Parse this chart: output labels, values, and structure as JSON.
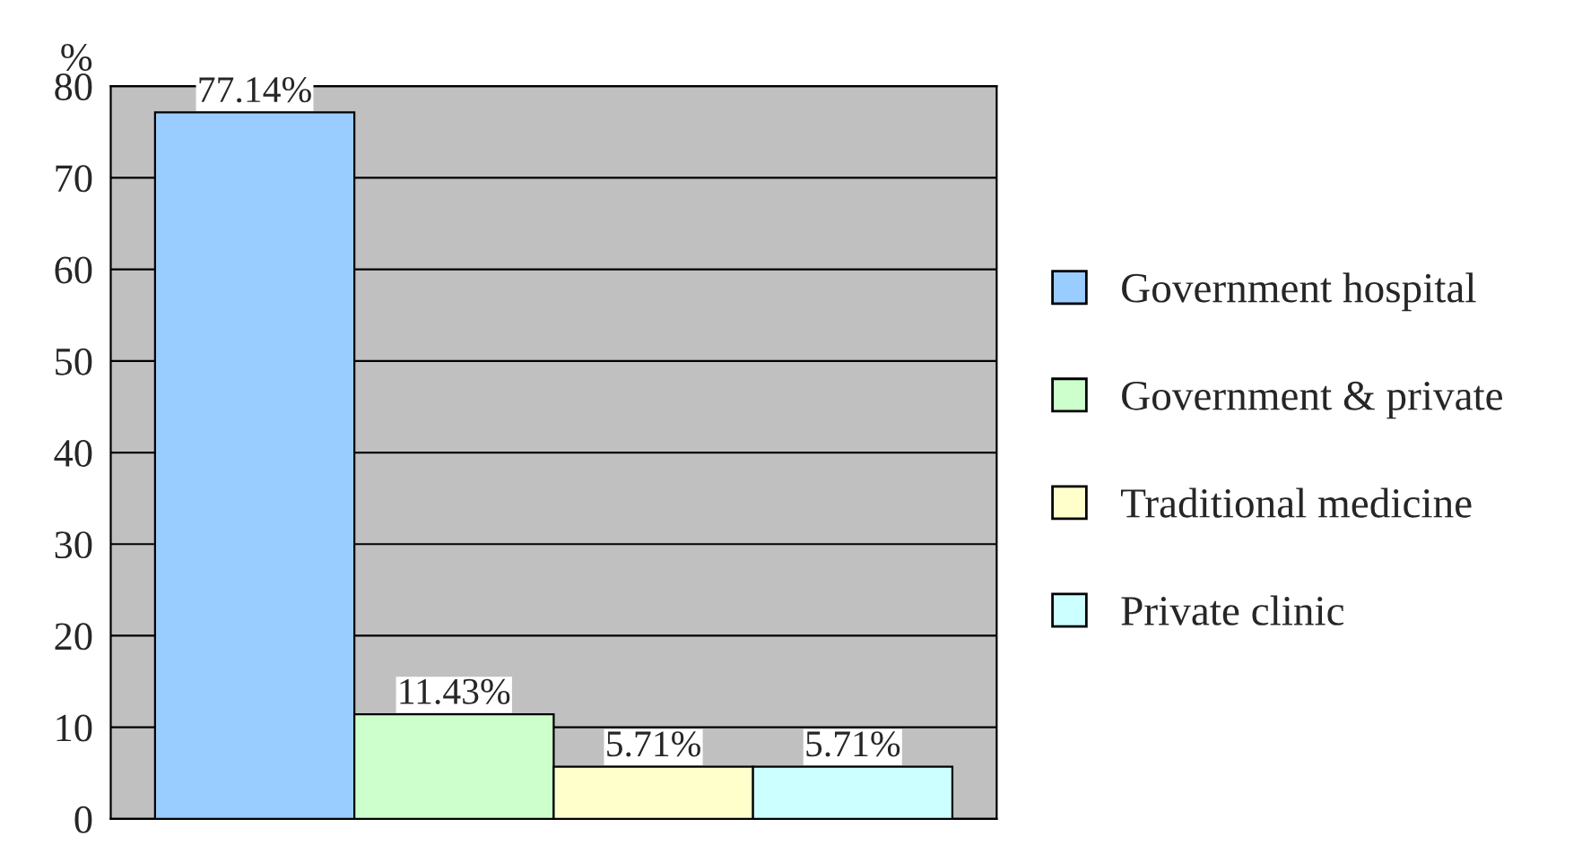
{
  "chart_data": {
    "type": "bar",
    "ylabel": "%",
    "categories": [
      null
    ],
    "series": [
      {
        "name": "Government hospital",
        "color": "#99ccff",
        "values": [
          77.14
        ],
        "value_labels": [
          "77.14%"
        ]
      },
      {
        "name": "Government & private",
        "color": "#ccffcc",
        "values": [
          11.43
        ],
        "value_labels": [
          "11.43%"
        ]
      },
      {
        "name": "Traditional medicine",
        "color": "#ffffcc",
        "values": [
          5.71
        ],
        "value_labels": [
          "5.71%"
        ]
      },
      {
        "name": "Private clinic",
        "color": "#ccffff",
        "values": [
          5.71
        ],
        "value_labels": [
          "5.71%"
        ]
      }
    ],
    "ylim": [
      0,
      80
    ],
    "yticks": [
      0,
      10,
      20,
      30,
      40,
      50,
      60,
      70,
      80
    ],
    "grid": "y",
    "legend": "right"
  }
}
